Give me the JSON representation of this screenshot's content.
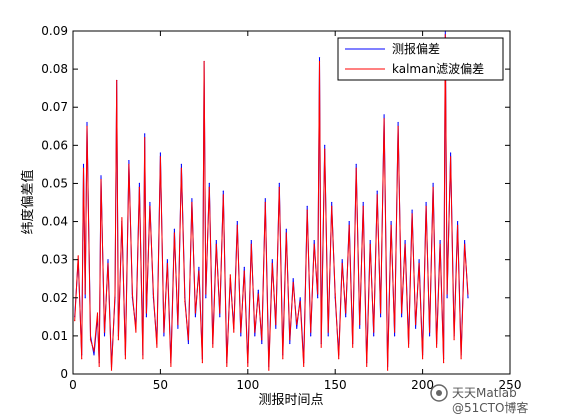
{
  "chart_data": {
    "type": "line",
    "title": "",
    "xlabel": "测报时间点",
    "ylabel": "纬度偏差值",
    "xlim": [
      0,
      250
    ],
    "ylim": [
      0,
      0.09
    ],
    "xticks": [
      0,
      50,
      100,
      150,
      200,
      250
    ],
    "yticks": [
      0,
      0.01,
      0.02,
      0.03,
      0.04,
      0.05,
      0.06,
      0.07,
      0.08,
      0.09
    ],
    "xtick_labels": [
      "0",
      "50",
      "100",
      "150",
      "200",
      "250"
    ],
    "ytick_labels": [
      "0",
      "0.01",
      "0.02",
      "0.03",
      "0.04",
      "0.05",
      "0.06",
      "0.07",
      "0.08",
      "0.09"
    ],
    "grid": false,
    "legend_position": "top-right",
    "series": [
      {
        "name": "测报偏差",
        "color": "#0000ff",
        "x": [
          1,
          3,
          5,
          6,
          7,
          8,
          10,
          12,
          14,
          15,
          16,
          18,
          20,
          22,
          24,
          25,
          26,
          28,
          30,
          32,
          34,
          36,
          38,
          40,
          41,
          42,
          44,
          46,
          48,
          50,
          52,
          54,
          56,
          58,
          60,
          62,
          64,
          66,
          68,
          70,
          72,
          74,
          75,
          76,
          78,
          80,
          82,
          84,
          86,
          88,
          90,
          92,
          94,
          96,
          98,
          100,
          102,
          104,
          106,
          108,
          110,
          112,
          114,
          116,
          118,
          120,
          122,
          124,
          126,
          128,
          130,
          132,
          134,
          136,
          138,
          140,
          141,
          142,
          144,
          146,
          148,
          150,
          152,
          154,
          156,
          158,
          160,
          162,
          164,
          166,
          168,
          170,
          172,
          174,
          176,
          178,
          180,
          182,
          184,
          186,
          188,
          190,
          192,
          194,
          196,
          198,
          200,
          202,
          204,
          206,
          208,
          210,
          212,
          213,
          214,
          216,
          218,
          220,
          222,
          224,
          226
        ],
        "values": [
          0.015,
          0.03,
          0.005,
          0.055,
          0.02,
          0.066,
          0.01,
          0.005,
          0.015,
          0.003,
          0.052,
          0.01,
          0.03,
          0.002,
          0.02,
          0.077,
          0.01,
          0.04,
          0.005,
          0.056,
          0.02,
          0.012,
          0.05,
          0.005,
          0.063,
          0.015,
          0.045,
          0.02,
          0.008,
          0.058,
          0.01,
          0.03,
          0.003,
          0.038,
          0.012,
          0.055,
          0.02,
          0.008,
          0.046,
          0.015,
          0.028,
          0.004,
          0.082,
          0.02,
          0.05,
          0.008,
          0.035,
          0.015,
          0.048,
          0.003,
          0.025,
          0.012,
          0.04,
          0.01,
          0.028,
          0.003,
          0.035,
          0.01,
          0.022,
          0.008,
          0.046,
          0.002,
          0.03,
          0.012,
          0.05,
          0.005,
          0.038,
          0.008,
          0.025,
          0.012,
          0.02,
          0.003,
          0.044,
          0.01,
          0.035,
          0.02,
          0.083,
          0.008,
          0.06,
          0.01,
          0.045,
          0.02,
          0.005,
          0.03,
          0.015,
          0.04,
          0.008,
          0.055,
          0.012,
          0.045,
          0.003,
          0.035,
          0.01,
          0.048,
          0.015,
          0.068,
          0.002,
          0.04,
          0.01,
          0.066,
          0.015,
          0.035,
          0.008,
          0.043,
          0.012,
          0.03,
          0.005,
          0.045,
          0.01,
          0.05,
          0.008,
          0.035,
          0.004,
          0.09,
          0.02,
          0.058,
          0.01,
          0.04,
          0.005,
          0.035,
          0.02
        ]
      },
      {
        "name": "kalman滤波偏差",
        "color": "#ff0000",
        "x": [
          1,
          3,
          5,
          6,
          7,
          8,
          10,
          12,
          14,
          15,
          16,
          18,
          20,
          22,
          24,
          25,
          26,
          28,
          30,
          32,
          34,
          36,
          38,
          40,
          41,
          42,
          44,
          46,
          48,
          50,
          52,
          54,
          56,
          58,
          60,
          62,
          64,
          66,
          68,
          70,
          72,
          74,
          75,
          76,
          78,
          80,
          82,
          84,
          86,
          88,
          90,
          92,
          94,
          96,
          98,
          100,
          102,
          104,
          106,
          108,
          110,
          112,
          114,
          116,
          118,
          120,
          122,
          124,
          126,
          128,
          130,
          132,
          134,
          136,
          138,
          140,
          141,
          142,
          144,
          146,
          148,
          150,
          152,
          154,
          156,
          158,
          160,
          162,
          164,
          166,
          168,
          170,
          172,
          174,
          176,
          178,
          180,
          182,
          184,
          186,
          188,
          190,
          192,
          194,
          196,
          198,
          200,
          202,
          204,
          206,
          208,
          210,
          212,
          213,
          214,
          216,
          218,
          220,
          222,
          224,
          226
        ],
        "values": [
          0.014,
          0.031,
          0.004,
          0.054,
          0.021,
          0.065,
          0.009,
          0.006,
          0.016,
          0.002,
          0.051,
          0.011,
          0.029,
          0.001,
          0.021,
          0.077,
          0.009,
          0.041,
          0.004,
          0.055,
          0.021,
          0.011,
          0.049,
          0.004,
          0.062,
          0.016,
          0.044,
          0.021,
          0.007,
          0.057,
          0.011,
          0.029,
          0.002,
          0.037,
          0.013,
          0.054,
          0.019,
          0.009,
          0.045,
          0.016,
          0.027,
          0.003,
          0.082,
          0.021,
          0.049,
          0.007,
          0.034,
          0.016,
          0.047,
          0.002,
          0.026,
          0.011,
          0.039,
          0.011,
          0.027,
          0.002,
          0.034,
          0.011,
          0.021,
          0.009,
          0.045,
          0.001,
          0.029,
          0.013,
          0.049,
          0.004,
          0.037,
          0.009,
          0.024,
          0.013,
          0.019,
          0.002,
          0.043,
          0.011,
          0.034,
          0.021,
          0.082,
          0.007,
          0.059,
          0.011,
          0.044,
          0.021,
          0.004,
          0.029,
          0.016,
          0.039,
          0.007,
          0.054,
          0.013,
          0.044,
          0.002,
          0.034,
          0.011,
          0.047,
          0.016,
          0.067,
          0.001,
          0.039,
          0.011,
          0.065,
          0.016,
          0.034,
          0.007,
          0.042,
          0.013,
          0.029,
          0.004,
          0.044,
          0.011,
          0.049,
          0.007,
          0.034,
          0.003,
          0.089,
          0.021,
          0.057,
          0.009,
          0.039,
          0.004,
          0.034,
          0.021
        ]
      }
    ]
  },
  "watermark": {
    "text": "天天Matlab",
    "subtext": "@51CTO博客"
  }
}
